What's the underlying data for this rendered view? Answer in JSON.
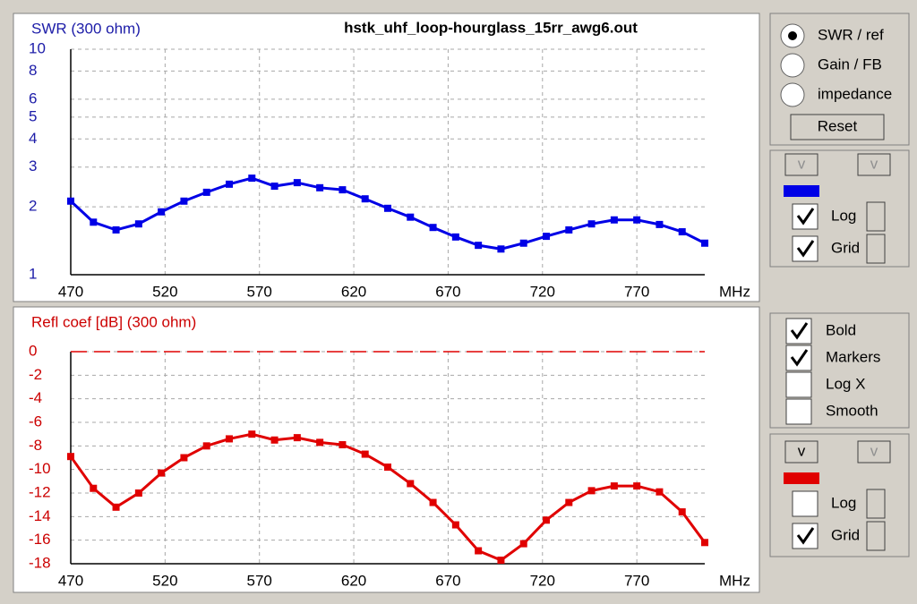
{
  "chart_data": [
    {
      "type": "line",
      "title": "hstk_uhf_loop-hourglass_15rr_awg6.out",
      "ylabel": "SWR (300 ohm)",
      "xlabel": "MHz",
      "log_y": true,
      "grid": true,
      "axis_color": "#1c1ca8",
      "x": [
        470,
        482,
        494,
        506,
        518,
        530,
        542,
        554,
        566,
        578,
        590,
        602,
        614,
        626,
        638,
        650,
        662,
        674,
        686,
        698,
        710,
        722,
        734,
        746,
        758,
        770,
        782,
        794,
        806
      ],
      "series": [
        {
          "color": "#0000e6",
          "values": [
            2.12,
            1.71,
            1.58,
            1.68,
            1.9,
            2.12,
            2.32,
            2.52,
            2.68,
            2.47,
            2.56,
            2.43,
            2.38,
            2.17,
            1.97,
            1.8,
            1.62,
            1.47,
            1.35,
            1.3,
            1.38,
            1.48,
            1.58,
            1.68,
            1.75,
            1.75,
            1.67,
            1.55,
            1.38
          ]
        }
      ],
      "xlim": [
        470,
        806
      ],
      "xticks": [
        470,
        520,
        570,
        620,
        670,
        720,
        770
      ],
      "ylim": [
        1,
        10
      ],
      "yticks": [
        1,
        2,
        3,
        4,
        5,
        6,
        8,
        10
      ]
    },
    {
      "type": "line",
      "ylabel": "Refl coef [dB] (300 ohm)",
      "xlabel": "MHz",
      "log_y": false,
      "grid": true,
      "axis_color": "#cc0000",
      "hline": 0,
      "x": [
        470,
        482,
        494,
        506,
        518,
        530,
        542,
        554,
        566,
        578,
        590,
        602,
        614,
        626,
        638,
        650,
        662,
        674,
        686,
        698,
        710,
        722,
        734,
        746,
        758,
        770,
        782,
        794,
        806
      ],
      "series": [
        {
          "color": "#e00000",
          "values": [
            -8.9,
            -11.6,
            -13.2,
            -12.0,
            -10.3,
            -9.0,
            -8.0,
            -7.4,
            -7.0,
            -7.5,
            -7.3,
            -7.7,
            -7.9,
            -8.7,
            -9.8,
            -11.2,
            -12.8,
            -14.7,
            -16.9,
            -17.7,
            -16.3,
            -14.3,
            -12.8,
            -11.8,
            -11.4,
            -11.4,
            -11.9,
            -13.6,
            -16.2
          ]
        }
      ],
      "xlim": [
        470,
        806
      ],
      "xticks": [
        470,
        520,
        570,
        620,
        670,
        720,
        770
      ],
      "ylim": [
        -18,
        0
      ],
      "yticks": [
        0,
        -2,
        -4,
        -6,
        -8,
        -10,
        -12,
        -14,
        -16,
        -18
      ]
    }
  ],
  "controls": {
    "mode": [
      {
        "label": "SWR / ref",
        "checked": true
      },
      {
        "label": "Gain / FB",
        "checked": false
      },
      {
        "label": "impedance",
        "checked": false
      }
    ],
    "reset": "Reset",
    "top_panel": {
      "buttons": [
        "v",
        "v"
      ],
      "checks": [
        {
          "label": "Log",
          "checked": true
        },
        {
          "label": "Grid",
          "checked": true
        }
      ]
    },
    "options": [
      {
        "label": "Bold",
        "checked": true
      },
      {
        "label": "Markers",
        "checked": true
      },
      {
        "label": "Log X",
        "checked": false
      },
      {
        "label": "Smooth",
        "checked": false
      }
    ],
    "bottom_panel": {
      "buttons": [
        "v",
        "v"
      ],
      "checks": [
        {
          "label": "Log",
          "checked": false
        },
        {
          "label": "Grid",
          "checked": true
        }
      ]
    }
  }
}
